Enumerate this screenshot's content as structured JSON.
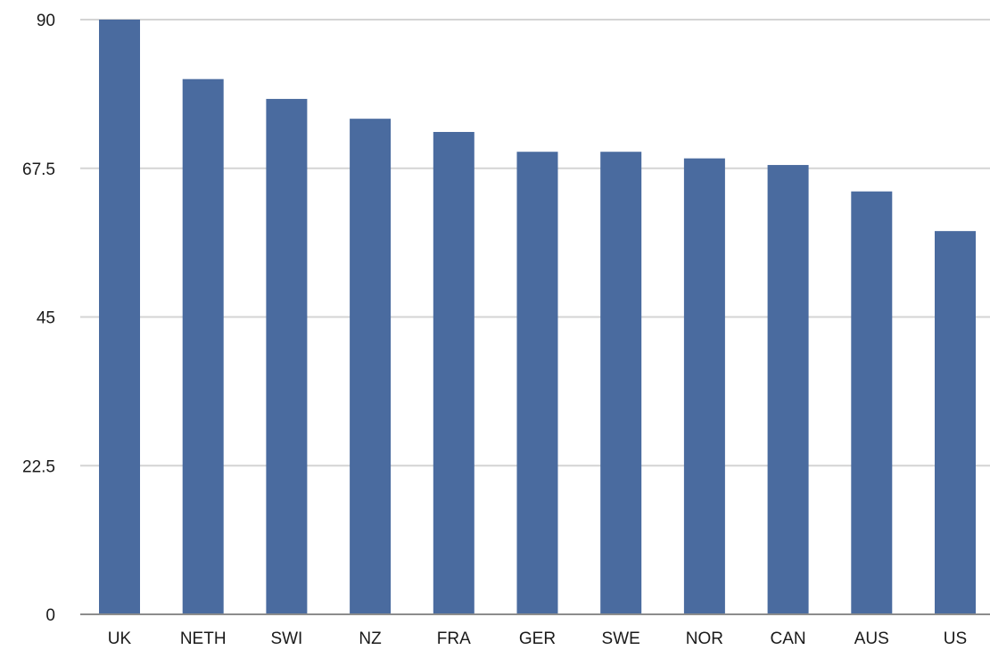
{
  "chart_data": {
    "type": "bar",
    "categories": [
      "UK",
      "NETH",
      "SWI",
      "NZ",
      "FRA",
      "GER",
      "SWE",
      "NOR",
      "CAN",
      "AUS",
      "US"
    ],
    "values": [
      90,
      81,
      78,
      75,
      73,
      70,
      70,
      69,
      68,
      64,
      58
    ],
    "title": "",
    "xlabel": "",
    "ylabel": "",
    "ylim": [
      0,
      90
    ],
    "yticks": [
      0,
      22.5,
      45,
      67.5,
      90
    ],
    "ytick_labels": [
      "0",
      "22.5",
      "45",
      "67.5",
      "90"
    ],
    "grid": true,
    "legend": "none",
    "colors": {
      "bar": "#4a6b9f",
      "grid": "#d4d4d4",
      "axis": "#8c8c8c"
    }
  }
}
